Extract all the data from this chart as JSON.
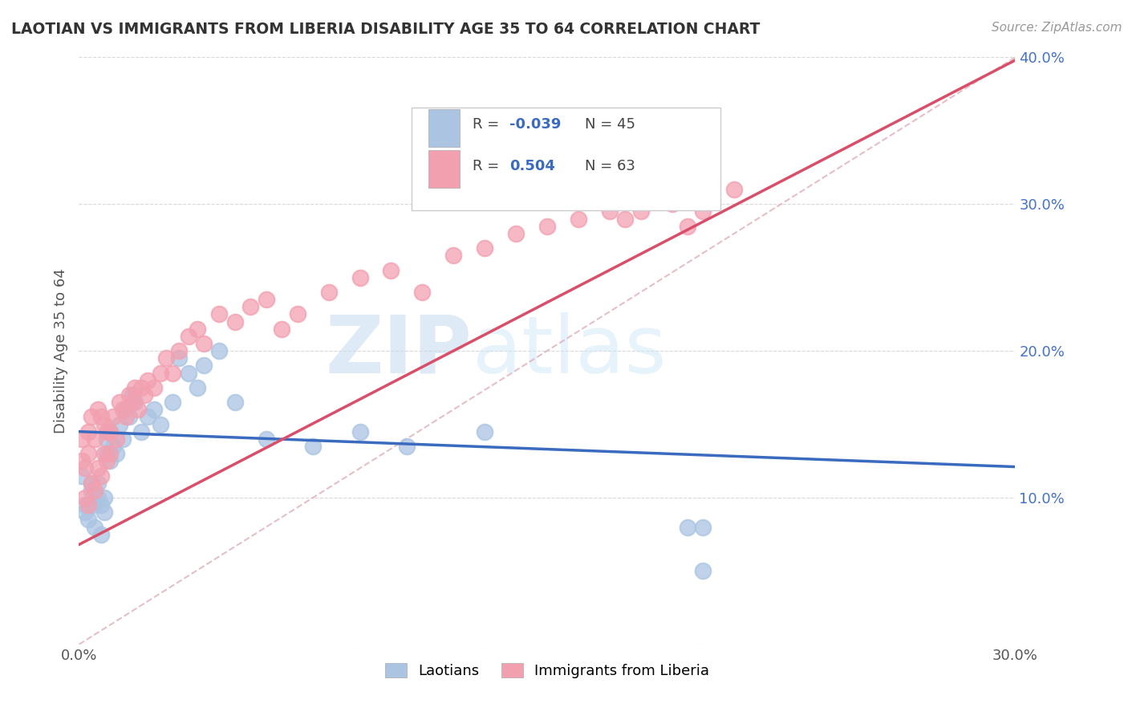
{
  "title": "LAOTIAN VS IMMIGRANTS FROM LIBERIA DISABILITY AGE 35 TO 64 CORRELATION CHART",
  "source": "Source: ZipAtlas.com",
  "ylabel": "Disability Age 35 to 64",
  "blue_color": "#aac4e2",
  "pink_color": "#f2a0b0",
  "blue_line_color": "#3a6bbf",
  "pink_line_color": "#d94f6a",
  "diag_line_color": "#e0b0b8",
  "xlim": [
    0.0,
    0.3
  ],
  "ylim": [
    0.0,
    0.4
  ],
  "xticks": [
    0.0,
    0.05,
    0.1,
    0.15,
    0.2,
    0.25,
    0.3
  ],
  "yticks": [
    0.0,
    0.1,
    0.2,
    0.3,
    0.4
  ],
  "xtick_labels": [
    "0.0%",
    "",
    "",
    "",
    "",
    "",
    "30.0%"
  ],
  "ytick_labels": [
    "",
    "10.0%",
    "20.0%",
    "30.0%",
    "40.0%"
  ],
  "blue_x": [
    0.001,
    0.002,
    0.002,
    0.003,
    0.004,
    0.004,
    0.005,
    0.005,
    0.006,
    0.006,
    0.007,
    0.007,
    0.008,
    0.008,
    0.009,
    0.009,
    0.01,
    0.01,
    0.011,
    0.012,
    0.013,
    0.014,
    0.015,
    0.016,
    0.017,
    0.018,
    0.02,
    0.022,
    0.024,
    0.026,
    0.03,
    0.032,
    0.035,
    0.038,
    0.04,
    0.045,
    0.05,
    0.06,
    0.075,
    0.09,
    0.105,
    0.13,
    0.195,
    0.2,
    0.2
  ],
  "blue_y": [
    0.115,
    0.09,
    0.095,
    0.085,
    0.105,
    0.11,
    0.08,
    0.095,
    0.1,
    0.11,
    0.075,
    0.095,
    0.1,
    0.09,
    0.13,
    0.14,
    0.125,
    0.145,
    0.135,
    0.13,
    0.15,
    0.14,
    0.16,
    0.155,
    0.17,
    0.165,
    0.145,
    0.155,
    0.16,
    0.15,
    0.165,
    0.195,
    0.185,
    0.175,
    0.19,
    0.2,
    0.165,
    0.14,
    0.135,
    0.145,
    0.135,
    0.145,
    0.08,
    0.08,
    0.05
  ],
  "pink_x": [
    0.001,
    0.001,
    0.002,
    0.002,
    0.003,
    0.003,
    0.003,
    0.004,
    0.004,
    0.005,
    0.005,
    0.006,
    0.006,
    0.007,
    0.007,
    0.008,
    0.008,
    0.009,
    0.009,
    0.01,
    0.01,
    0.011,
    0.012,
    0.013,
    0.014,
    0.015,
    0.016,
    0.017,
    0.018,
    0.019,
    0.02,
    0.021,
    0.022,
    0.024,
    0.026,
    0.028,
    0.03,
    0.032,
    0.035,
    0.038,
    0.04,
    0.045,
    0.05,
    0.055,
    0.06,
    0.065,
    0.07,
    0.08,
    0.09,
    0.1,
    0.11,
    0.12,
    0.13,
    0.14,
    0.15,
    0.16,
    0.17,
    0.175,
    0.18,
    0.19,
    0.195,
    0.2,
    0.21
  ],
  "pink_y": [
    0.125,
    0.14,
    0.1,
    0.12,
    0.095,
    0.13,
    0.145,
    0.11,
    0.155,
    0.105,
    0.14,
    0.12,
    0.16,
    0.115,
    0.155,
    0.13,
    0.15,
    0.125,
    0.145,
    0.13,
    0.145,
    0.155,
    0.14,
    0.165,
    0.16,
    0.155,
    0.17,
    0.165,
    0.175,
    0.16,
    0.175,
    0.17,
    0.18,
    0.175,
    0.185,
    0.195,
    0.185,
    0.2,
    0.21,
    0.215,
    0.205,
    0.225,
    0.22,
    0.23,
    0.235,
    0.215,
    0.225,
    0.24,
    0.25,
    0.255,
    0.24,
    0.265,
    0.27,
    0.28,
    0.285,
    0.29,
    0.295,
    0.29,
    0.295,
    0.3,
    0.285,
    0.295,
    0.31
  ],
  "watermark_zip": "ZIP",
  "watermark_atlas": "atlas",
  "background_color": "#ffffff",
  "grid_color": "#d8d8d8",
  "blue_intercept": 0.145,
  "blue_slope": -0.08,
  "pink_intercept": 0.068,
  "pink_slope": 1.1
}
